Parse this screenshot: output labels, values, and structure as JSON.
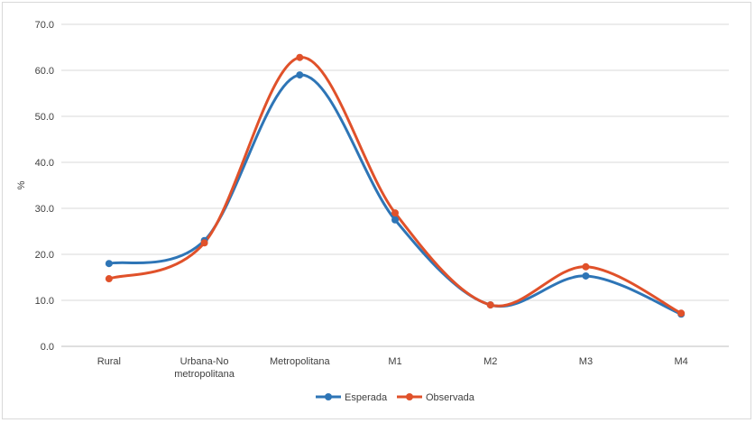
{
  "chart_data": {
    "type": "line",
    "title": "",
    "xlabel": "",
    "ylabel": "%",
    "ylim": [
      0,
      70
    ],
    "yticks": [
      "0.0",
      "10.0",
      "20.0",
      "30.0",
      "40.0",
      "50.0",
      "60.0",
      "70.0"
    ],
    "categories": [
      [
        "Rural"
      ],
      [
        "Urbana-No",
        "metropolitana"
      ],
      [
        "Metropolitana"
      ],
      [
        "M1"
      ],
      [
        "M2"
      ],
      [
        "M3"
      ],
      [
        "M4"
      ]
    ],
    "series": [
      {
        "name": "Esperada",
        "color": "#2e75b6",
        "values": [
          18.0,
          23.0,
          59.0,
          27.5,
          9.0,
          15.3,
          7.0
        ]
      },
      {
        "name": "Observada",
        "color": "#e0512a",
        "values": [
          14.7,
          22.5,
          62.8,
          29.0,
          9.0,
          17.3,
          7.2
        ]
      }
    ],
    "grid": true,
    "legend_position": "bottom-center"
  }
}
